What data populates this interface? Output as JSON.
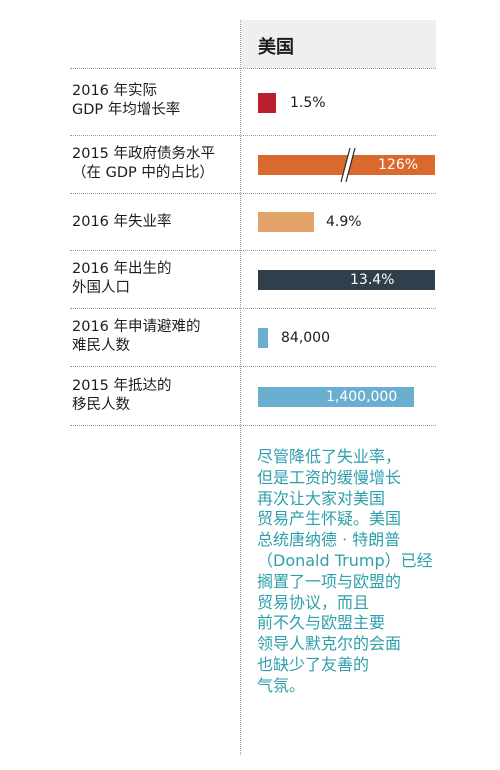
{
  "header": {
    "country": "美国"
  },
  "chart_data": {
    "type": "bar",
    "title": "",
    "categories": [
      "2016 年实际 GDP 年均增长率",
      "2015 年政府债务水平（在 GDP 中的占比）",
      "2016 年失业率",
      "2016 年出生的外国人口",
      "2016 年申请避难的难民人数",
      "2015 年抵达的移民人数"
    ],
    "series": [
      {
        "values": [
          1.5,
          126,
          4.9,
          13.4,
          84000,
          1400000
        ],
        "value_labels": [
          "1.5%",
          "126%",
          "4.9%",
          "13.4%",
          "84,000",
          "1,400,000"
        ]
      }
    ],
    "axis_break_on": "2015 年政府债务水平（在 GDP 中的占比）"
  },
  "rows": [
    {
      "label_lines": [
        "2016 年实际",
        "GDP 年均增长率"
      ],
      "value_label": "1.5%",
      "color": "#b8202c"
    },
    {
      "label_lines": [
        "2015 年政府债务水平",
        "（在 GDP 中的占比）"
      ],
      "value_label": "126%",
      "color": "#d9692c"
    },
    {
      "label_lines": [
        "2016 年失业率"
      ],
      "value_label": "4.9%",
      "color": "#e3a46a"
    },
    {
      "label_lines": [
        "2016 年出生的",
        "外国人口"
      ],
      "value_label": "13.4%",
      "color": "#2f3f4c"
    },
    {
      "label_lines": [
        "2016 年申请避难的",
        "难民人数"
      ],
      "value_label": "84,000",
      "color": "#6aaed0"
    },
    {
      "label_lines": [
        "2015 年抵达的",
        "移民人数"
      ],
      "value_label": "1,400,000",
      "color": "#6aaed0"
    }
  ],
  "note": {
    "lines": [
      "尽管降低了失业率，",
      "但是工资的缓慢增长",
      "再次让大家对美国",
      "贸易产生怀疑。美国",
      "总统唐纳德 · 特朗普",
      "（Donald Trump）已经",
      "搁置了一项与欧盟的",
      "贸易协议，而且",
      "前不久与欧盟主要",
      "领导人默克尔的会面",
      "也缺少了友善的",
      "气氛。"
    ],
    "color": "#2f9fac"
  }
}
